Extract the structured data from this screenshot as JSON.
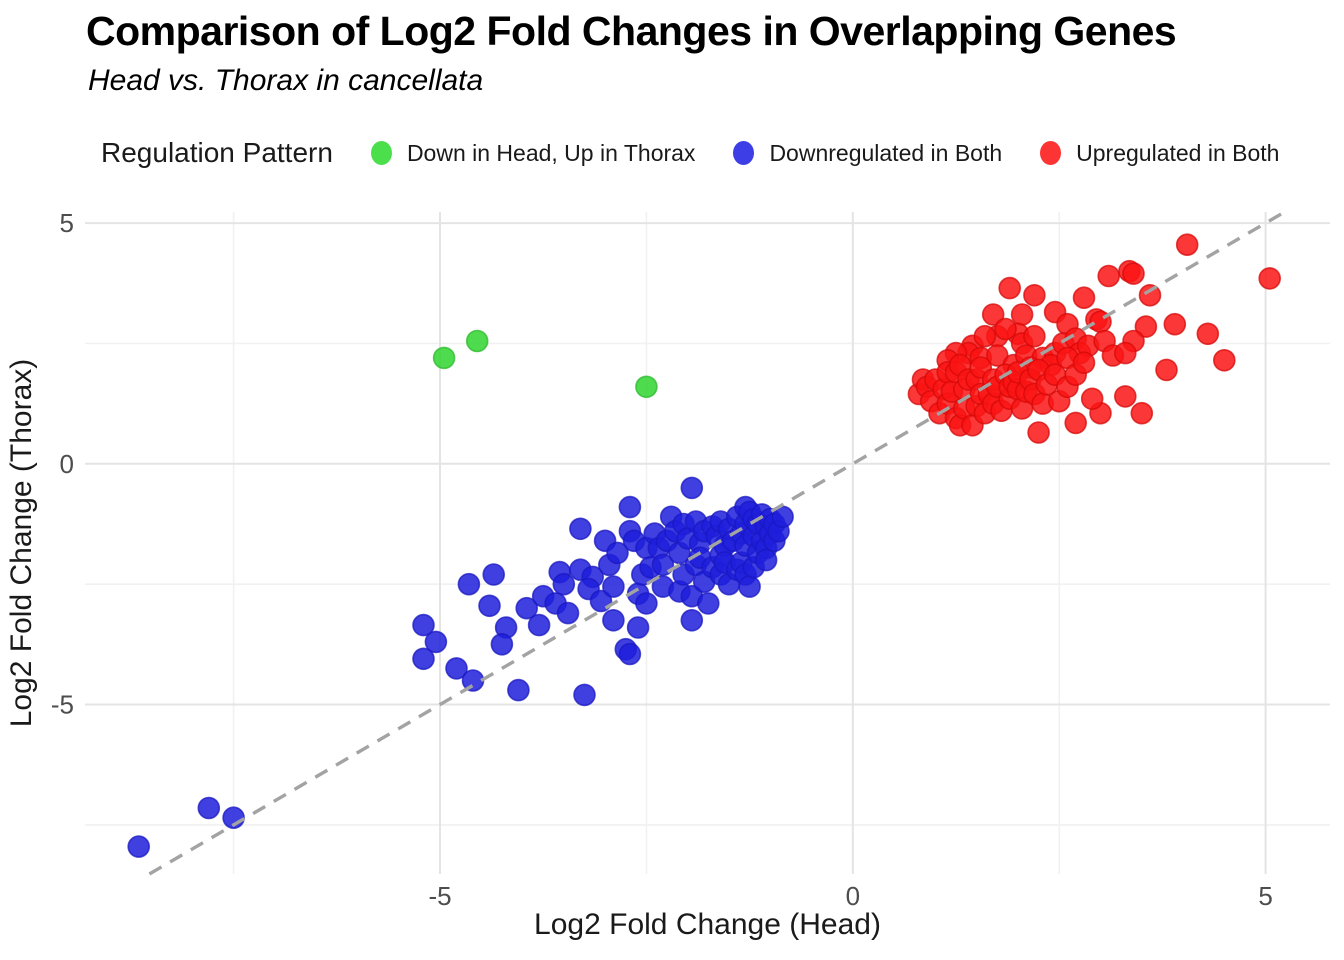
{
  "header": {
    "title": "Comparison of Log2 Fold Changes in Overlapping Genes",
    "subtitle": "Head vs. Thorax in cancellata"
  },
  "legend": {
    "title": "Regulation Pattern",
    "items": [
      {
        "label": "Down in Head, Up in Thorax",
        "color": "#4CDF4C"
      },
      {
        "label": "Downregulated in Both",
        "color": "#3E3EE6"
      },
      {
        "label": "Upregulated in Both",
        "color": "#FC3434"
      }
    ]
  },
  "chart_data": {
    "type": "scatter",
    "title": "Comparison of Log2 Fold Changes in Overlapping Genes",
    "subtitle": "Head vs. Thorax in cancellata",
    "xlabel": "Log2 Fold Change (Head)",
    "ylabel": "Log2 Fold Change (Thorax)",
    "xlim": [
      -9.3,
      5.78
    ],
    "ylim": [
      -8.52,
      5.23
    ],
    "grid": "on",
    "legend_position": "top",
    "x_ticks_major": [
      -5,
      0,
      5
    ],
    "x_tick_labels": [
      "-5",
      "0",
      "5"
    ],
    "x_ticks_minor": [
      -7.5,
      -2.5,
      2.5
    ],
    "y_ticks_major": [
      5,
      0,
      -5
    ],
    "y_tick_labels": [
      "5",
      "0",
      "-5"
    ],
    "y_ticks_minor": [
      2.5,
      -2.5,
      -7.5
    ],
    "reference_line": {
      "type": "identity y=x",
      "style": "dashed",
      "color": "#A3A3A3"
    },
    "series": [
      {
        "name": "Down in Head, Up in Thorax",
        "color": "#2FD52F",
        "stroke": "#2CB82C",
        "points": [
          [
            -4.95,
            2.2
          ],
          [
            -4.55,
            2.55
          ],
          [
            -2.5,
            1.6
          ]
        ]
      },
      {
        "name": "Downregulated in Both",
        "color": "#1E1EDC",
        "stroke": "#1A18C0",
        "points": [
          [
            -8.65,
            -7.95
          ],
          [
            -7.8,
            -7.15
          ],
          [
            -7.5,
            -7.35
          ],
          [
            -5.2,
            -3.35
          ],
          [
            -5.05,
            -3.7
          ],
          [
            -5.2,
            -4.05
          ],
          [
            -4.8,
            -4.25
          ],
          [
            -4.6,
            -4.5
          ],
          [
            -4.65,
            -2.5
          ],
          [
            -4.35,
            -2.3
          ],
          [
            -4.4,
            -2.95
          ],
          [
            -4.2,
            -3.4
          ],
          [
            -4.25,
            -3.75
          ],
          [
            -4.05,
            -4.7
          ],
          [
            -3.95,
            -3.0
          ],
          [
            -3.8,
            -3.35
          ],
          [
            -3.75,
            -2.75
          ],
          [
            -3.6,
            -2.9
          ],
          [
            -3.55,
            -2.25
          ],
          [
            -3.5,
            -2.5
          ],
          [
            -3.45,
            -3.1
          ],
          [
            -3.3,
            -1.35
          ],
          [
            -3.3,
            -2.2
          ],
          [
            -3.25,
            -4.8
          ],
          [
            -3.15,
            -2.35
          ],
          [
            -3.2,
            -2.6
          ],
          [
            -3.05,
            -2.85
          ],
          [
            -3.0,
            -1.6
          ],
          [
            -2.95,
            -2.1
          ],
          [
            -2.9,
            -2.55
          ],
          [
            -2.9,
            -3.25
          ],
          [
            -2.85,
            -1.85
          ],
          [
            -2.75,
            -3.85
          ],
          [
            -2.7,
            -0.9
          ],
          [
            -2.7,
            -1.4
          ],
          [
            -2.7,
            -3.95
          ],
          [
            -2.65,
            -1.6
          ],
          [
            -2.6,
            -2.7
          ],
          [
            -2.6,
            -3.4
          ],
          [
            -2.55,
            -2.3
          ],
          [
            -2.5,
            -1.75
          ],
          [
            -2.5,
            -2.9
          ],
          [
            -2.45,
            -2.15
          ],
          [
            -2.4,
            -1.45
          ],
          [
            -2.35,
            -1.75
          ],
          [
            -2.3,
            -2.1
          ],
          [
            -2.3,
            -2.55
          ],
          [
            -2.25,
            -1.6
          ],
          [
            -2.2,
            -1.1
          ],
          [
            -2.15,
            -1.4
          ],
          [
            -2.1,
            -1.85
          ],
          [
            -2.1,
            -2.65
          ],
          [
            -2.05,
            -1.25
          ],
          [
            -2.05,
            -2.3
          ],
          [
            -2.0,
            -1.55
          ],
          [
            -1.95,
            -0.5
          ],
          [
            -1.95,
            -2.75
          ],
          [
            -1.95,
            -3.25
          ],
          [
            -1.9,
            -1.2
          ],
          [
            -1.9,
            -2.1
          ],
          [
            -1.85,
            -1.65
          ],
          [
            -1.85,
            -1.95
          ],
          [
            -1.8,
            -1.4
          ],
          [
            -1.8,
            -2.45
          ],
          [
            -1.75,
            -2.9
          ],
          [
            -1.7,
            -1.3
          ],
          [
            -1.7,
            -2.15
          ],
          [
            -1.65,
            -1.5
          ],
          [
            -1.6,
            -1.2
          ],
          [
            -1.6,
            -1.9
          ],
          [
            -1.6,
            -2.3
          ],
          [
            -1.55,
            -1.7
          ],
          [
            -1.55,
            -2.05
          ],
          [
            -1.5,
            -1.35
          ],
          [
            -1.5,
            -2.5
          ],
          [
            -1.45,
            -1.6
          ],
          [
            -1.4,
            -1.1
          ],
          [
            -1.4,
            -2.2
          ],
          [
            -1.35,
            -1.45
          ],
          [
            -1.35,
            -2.05
          ],
          [
            -1.3,
            -0.9
          ],
          [
            -1.3,
            -1.25
          ],
          [
            -1.3,
            -1.7
          ],
          [
            -1.3,
            -2.3
          ],
          [
            -1.25,
            -1.0
          ],
          [
            -1.25,
            -2.55
          ],
          [
            -1.2,
            -1.15
          ],
          [
            -1.2,
            -1.5
          ],
          [
            -1.2,
            -2.15
          ],
          [
            -1.15,
            -1.25
          ],
          [
            -1.15,
            -1.85
          ],
          [
            -1.1,
            -1.05
          ],
          [
            -1.1,
            -1.6
          ],
          [
            -1.05,
            -1.3
          ],
          [
            -1.05,
            -1.75
          ],
          [
            -1.05,
            -2.0
          ],
          [
            -1.0,
            -1.15
          ],
          [
            -1.0,
            -1.45
          ],
          [
            -0.95,
            -1.25
          ],
          [
            -0.95,
            -1.6
          ],
          [
            -0.9,
            -1.4
          ],
          [
            -0.85,
            -1.1
          ]
        ]
      },
      {
        "name": "Upregulated in Both",
        "color": "#FA1414",
        "stroke": "#D60A0A",
        "points": [
          [
            4.05,
            4.55
          ],
          [
            5.05,
            3.85
          ],
          [
            3.35,
            4.0
          ],
          [
            3.4,
            3.95
          ],
          [
            3.1,
            3.9
          ],
          [
            3.6,
            3.5
          ],
          [
            2.8,
            3.45
          ],
          [
            2.45,
            3.15
          ],
          [
            2.2,
            3.5
          ],
          [
            1.9,
            3.65
          ],
          [
            1.7,
            3.1
          ],
          [
            2.05,
            3.1
          ],
          [
            2.95,
            3.0
          ],
          [
            3.0,
            2.95
          ],
          [
            2.6,
            2.9
          ],
          [
            3.55,
            2.85
          ],
          [
            3.9,
            2.9
          ],
          [
            4.3,
            2.7
          ],
          [
            4.5,
            2.15
          ],
          [
            3.8,
            1.95
          ],
          [
            3.4,
            2.55
          ],
          [
            2.0,
            2.7
          ],
          [
            1.75,
            2.65
          ],
          [
            3.5,
            1.05
          ],
          [
            3.3,
            1.4
          ],
          [
            3.0,
            1.05
          ],
          [
            2.7,
            0.85
          ],
          [
            2.25,
            0.65
          ],
          [
            1.45,
            2.45
          ],
          [
            1.4,
            2.3
          ],
          [
            1.25,
            2.3
          ],
          [
            1.15,
            2.15
          ],
          [
            1.55,
            2.2
          ],
          [
            1.75,
            2.25
          ],
          [
            1.95,
            2.05
          ],
          [
            2.05,
            2.5
          ],
          [
            2.1,
            2.25
          ],
          [
            2.2,
            2.65
          ],
          [
            2.3,
            2.2
          ],
          [
            2.45,
            2.3
          ],
          [
            2.55,
            2.5
          ],
          [
            2.7,
            2.6
          ],
          [
            2.75,
            2.3
          ],
          [
            2.85,
            2.45
          ],
          [
            3.05,
            2.55
          ],
          [
            3.15,
            2.25
          ],
          [
            3.3,
            2.3
          ],
          [
            1.85,
            2.8
          ],
          [
            1.6,
            2.65
          ],
          [
            2.4,
            2.05
          ],
          [
            2.15,
            2.0
          ],
          [
            0.8,
            1.45
          ],
          [
            0.85,
            1.75
          ],
          [
            0.9,
            1.6
          ],
          [
            0.95,
            1.3
          ],
          [
            1.0,
            1.75
          ],
          [
            1.05,
            1.05
          ],
          [
            1.1,
            1.55
          ],
          [
            1.15,
            1.9
          ],
          [
            1.15,
            1.25
          ],
          [
            1.2,
            1.5
          ],
          [
            1.25,
            0.95
          ],
          [
            1.25,
            1.9
          ],
          [
            1.3,
            0.8
          ],
          [
            1.3,
            2.05
          ],
          [
            1.35,
            1.15
          ],
          [
            1.35,
            1.55
          ],
          [
            1.4,
            1.75
          ],
          [
            1.45,
            0.8
          ],
          [
            1.5,
            1.2
          ],
          [
            1.5,
            1.75
          ],
          [
            1.55,
            1.45
          ],
          [
            1.55,
            2.0
          ],
          [
            1.6,
            1.05
          ],
          [
            1.65,
            1.45
          ],
          [
            1.7,
            1.25
          ],
          [
            1.7,
            1.75
          ],
          [
            1.75,
            1.6
          ],
          [
            1.8,
            1.1
          ],
          [
            1.85,
            1.85
          ],
          [
            1.9,
            1.35
          ],
          [
            1.9,
            1.6
          ],
          [
            1.95,
            1.7
          ],
          [
            2.0,
            1.55
          ],
          [
            2.0,
            1.9
          ],
          [
            2.05,
            1.15
          ],
          [
            2.1,
            1.5
          ],
          [
            2.15,
            1.75
          ],
          [
            2.2,
            1.45
          ],
          [
            2.25,
            1.95
          ],
          [
            2.3,
            1.25
          ],
          [
            2.35,
            1.65
          ],
          [
            2.45,
            1.85
          ],
          [
            2.5,
            1.3
          ],
          [
            2.6,
            1.6
          ],
          [
            2.6,
            2.2
          ],
          [
            2.7,
            1.85
          ],
          [
            2.8,
            2.1
          ],
          [
            2.9,
            1.35
          ]
        ]
      }
    ]
  }
}
